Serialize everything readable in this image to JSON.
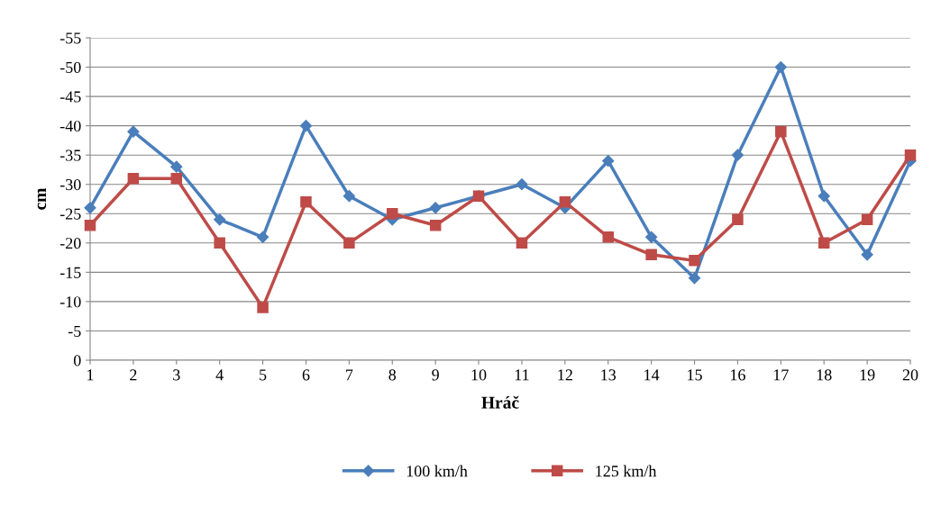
{
  "chart_data": {
    "type": "line",
    "xlabel": "Hráč",
    "ylabel": "cm",
    "categories": [
      "1",
      "2",
      "3",
      "4",
      "5",
      "6",
      "7",
      "8",
      "9",
      "10",
      "11",
      "12",
      "13",
      "14",
      "15",
      "16",
      "17",
      "18",
      "19",
      "20"
    ],
    "series": [
      {
        "name": "100 km/h",
        "color": "#4a7ebb",
        "marker": "diamond",
        "values": [
          -26,
          -39,
          -33,
          -24,
          -21,
          -40,
          -28,
          -24,
          -26,
          -28,
          -30,
          -26,
          -34,
          -21,
          -14,
          -35,
          -50,
          -28,
          -18,
          -34
        ]
      },
      {
        "name": "125 km/h",
        "color": "#be4b48",
        "marker": "square",
        "values": [
          -23,
          -31,
          -31,
          -20,
          -9,
          -27,
          -20,
          -25,
          -23,
          -28,
          -20,
          -27,
          -21,
          -18,
          -17,
          -24,
          -39,
          -20,
          -24,
          -35
        ]
      }
    ],
    "ylim": [
      0,
      -55
    ],
    "yticks": [
      -55,
      -50,
      -45,
      -40,
      -35,
      -30,
      -25,
      -20,
      -15,
      -10,
      -5,
      0
    ],
    "grid": "y",
    "legend": "bottom",
    "line_style": "solid"
  }
}
